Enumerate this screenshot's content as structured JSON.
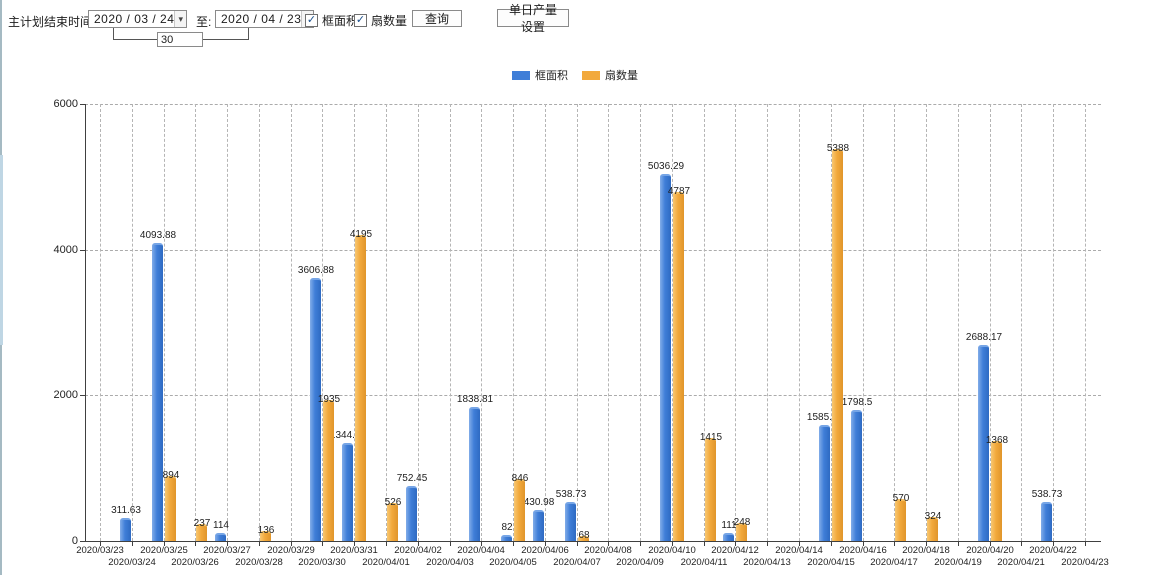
{
  "header": {
    "plan_end_label": "主计划结束时间:",
    "date_from": "2020 / 03 / 24",
    "to_label": "至:",
    "date_to": "2020 / 04 / 23",
    "interval_days": "30",
    "checkbox_frame_area": {
      "label": "框面积",
      "checked": true
    },
    "checkbox_fan_count": {
      "label": "扇数量",
      "checked": true
    },
    "query_button": "查询",
    "daily_output_button": "单日产量设置"
  },
  "legend": {
    "frame_area": "框面积",
    "fan_count": "扇数量"
  },
  "colors": {
    "frame_area": "#3f7ed8",
    "fan_count": "#f2a93c",
    "axis": "#404040",
    "grid": "#b5b5b5"
  },
  "chart_data": {
    "type": "bar",
    "title": "",
    "xlabel": "",
    "ylabel": "",
    "ylim": [
      0,
      6000
    ],
    "yticks": [
      0,
      2000,
      4000,
      6000
    ],
    "grid": true,
    "legend_position": "top-center",
    "categories": [
      "2020/03/23",
      "2020/03/24",
      "2020/03/25",
      "2020/03/26",
      "2020/03/27",
      "2020/03/28",
      "2020/03/29",
      "2020/03/30",
      "2020/03/31",
      "2020/04/01",
      "2020/04/02",
      "2020/04/03",
      "2020/04/04",
      "2020/04/05",
      "2020/04/06",
      "2020/04/07",
      "2020/04/08",
      "2020/04/09",
      "2020/04/10",
      "2020/04/11",
      "2020/04/12",
      "2020/04/13",
      "2020/04/14",
      "2020/04/15",
      "2020/04/16",
      "2020/04/17",
      "2020/04/18",
      "2020/04/19",
      "2020/04/20",
      "2020/04/21",
      "2020/04/22",
      "2020/04/23"
    ],
    "series": [
      {
        "name": "框面积",
        "color": "#3f7ed8",
        "values": [
          null,
          311.63,
          4093.88,
          null,
          114,
          null,
          null,
          3606.88,
          1344.95,
          null,
          752.45,
          null,
          1838.81,
          82,
          430.98,
          538.73,
          null,
          null,
          5036.29,
          null,
          111,
          null,
          null,
          1585.96,
          1798.5,
          null,
          null,
          null,
          2688.17,
          null,
          538.73,
          null
        ]
      },
      {
        "name": "扇数量",
        "color": "#f2a93c",
        "values": [
          null,
          null,
          894,
          237,
          null,
          136,
          null,
          1935,
          4195,
          526,
          null,
          null,
          null,
          846,
          null,
          68,
          null,
          null,
          4787,
          1415,
          248,
          null,
          null,
          5388,
          null,
          570,
          324,
          null,
          1368,
          null,
          null,
          null
        ]
      }
    ]
  }
}
